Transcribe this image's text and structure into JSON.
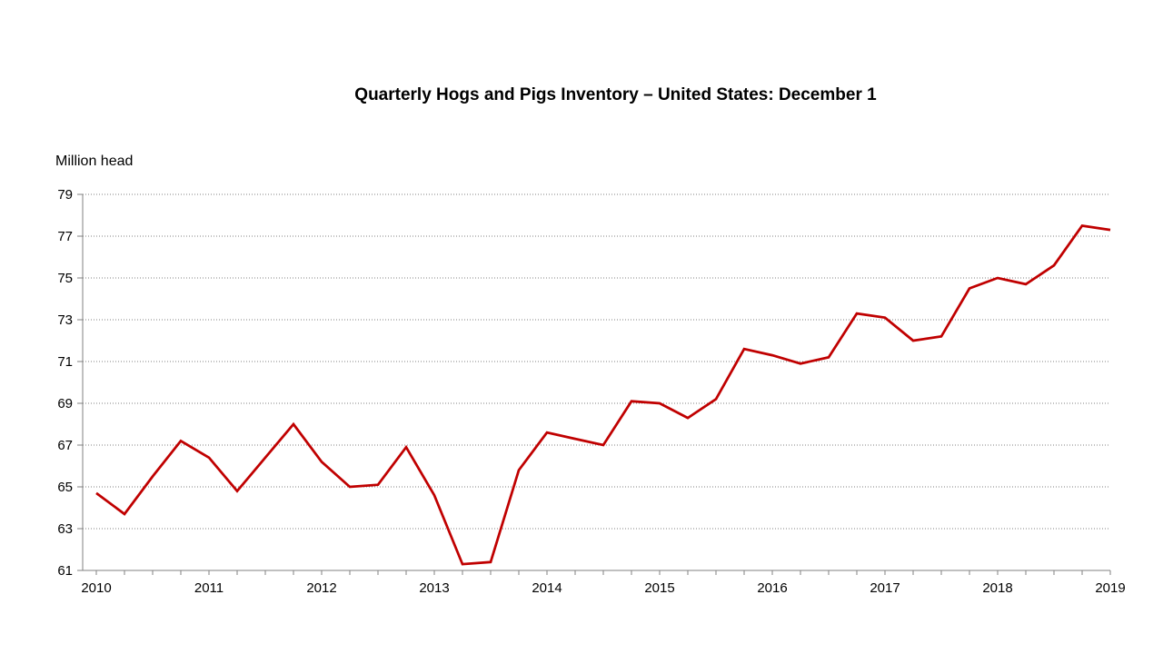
{
  "chart_data": {
    "type": "line",
    "title": "Quarterly Hogs and Pigs Inventory – United States: December 1",
    "ylabel": "Million head",
    "xlabel": "",
    "xlim": [
      2010,
      2019
    ],
    "ylim": [
      61,
      79
    ],
    "x_step": 0.25,
    "x_tick_labels": [
      "2010",
      "2011",
      "2012",
      "2013",
      "2014",
      "2015",
      "2016",
      "2017",
      "2018",
      "2019"
    ],
    "y_ticks": [
      61,
      63,
      65,
      67,
      69,
      71,
      73,
      75,
      77,
      79
    ],
    "x": [
      2010.0,
      2010.25,
      2010.5,
      2010.75,
      2011.0,
      2011.25,
      2011.5,
      2011.75,
      2012.0,
      2012.25,
      2012.5,
      2012.75,
      2013.0,
      2013.25,
      2013.5,
      2013.75,
      2014.0,
      2014.25,
      2014.5,
      2014.75,
      2015.0,
      2015.25,
      2015.5,
      2015.75,
      2016.0,
      2016.25,
      2016.5,
      2016.75,
      2017.0,
      2017.25,
      2017.5,
      2017.75,
      2018.0,
      2018.25,
      2018.5,
      2018.75,
      2019.0
    ],
    "values": [
      64.7,
      63.7,
      65.5,
      67.2,
      66.4,
      64.8,
      66.4,
      68.0,
      66.2,
      65.0,
      65.1,
      66.9,
      64.6,
      61.3,
      61.4,
      65.8,
      67.6,
      67.3,
      67.0,
      69.1,
      69.0,
      68.3,
      69.2,
      71.6,
      71.3,
      70.9,
      71.2,
      73.3,
      73.1,
      72.0,
      72.2,
      74.5,
      75.0,
      74.7,
      75.6,
      77.5,
      77.3
    ],
    "grid": "horizontal dotted",
    "legend": "none",
    "line_color": "#c00000",
    "axis_color": "#808080",
    "grid_color": "#808080",
    "text_color": "#000000"
  }
}
